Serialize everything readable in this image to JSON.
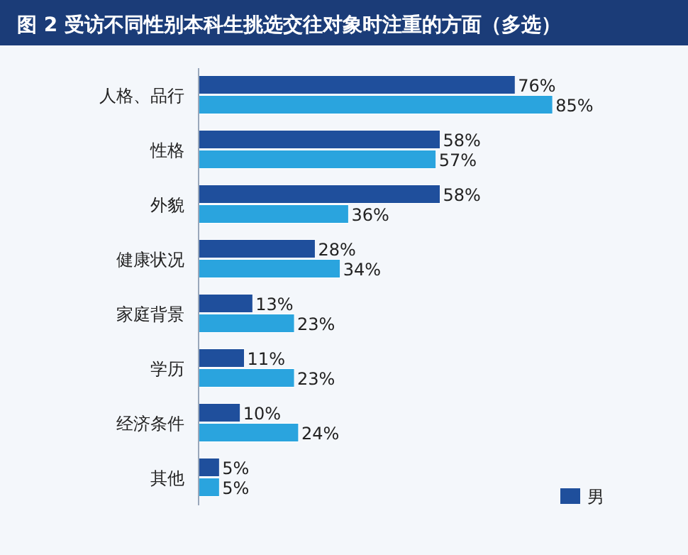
{
  "chart_data": {
    "type": "bar",
    "orientation": "horizontal",
    "title": "图 2  受访不同性别本科生挑选交往对象时注重的方面（多选）",
    "categories": [
      "人格、品行",
      "性格",
      "外貌",
      "健康状况",
      "家庭背景",
      "学历",
      "经济条件",
      "其他"
    ],
    "series": [
      {
        "name": "男",
        "color": "#1f4f9c",
        "values": [
          76,
          58,
          58,
          28,
          13,
          11,
          10,
          5
        ],
        "value_labels": [
          "76%",
          "58%",
          "58%",
          "28%",
          "13%",
          "11%",
          "10%",
          "5%"
        ]
      },
      {
        "color": "#2aa4de",
        "values": [
          85,
          57,
          36,
          34,
          23,
          23,
          24,
          5
        ],
        "value_labels": [
          "85%",
          "57%",
          "36%",
          "34%",
          "23%",
          "23%",
          "24%",
          "5%"
        ]
      }
    ],
    "tick_labels": "y",
    "legend": "bottom right"
  }
}
